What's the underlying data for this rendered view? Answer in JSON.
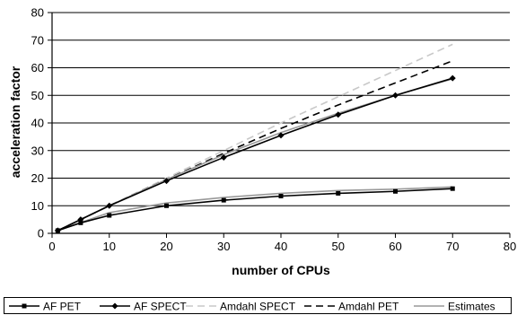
{
  "chart_data": {
    "type": "line",
    "title": "",
    "xlabel": "number of CPUs",
    "ylabel": "acceleration factor",
    "xlim": [
      0,
      80
    ],
    "ylim": [
      0,
      80
    ],
    "x_ticks": [
      0,
      10,
      20,
      30,
      40,
      50,
      60,
      70,
      80
    ],
    "y_ticks": [
      0,
      10,
      20,
      30,
      40,
      50,
      60,
      70,
      80
    ],
    "grid": "horizontal",
    "legend_position": "bottom",
    "series": [
      {
        "name": "AF PET",
        "color": "#000000",
        "style": "solid",
        "marker": "square",
        "x": [
          1,
          5,
          10,
          20,
          30,
          40,
          50,
          60,
          70
        ],
        "y": [
          1,
          3.8,
          6.5,
          10,
          12,
          13.5,
          14.5,
          15.2,
          16.2
        ]
      },
      {
        "name": "AF SPECT",
        "color": "#000000",
        "style": "solid",
        "marker": "diamond",
        "x": [
          1,
          5,
          10,
          20,
          30,
          40,
          50,
          60,
          70
        ],
        "y": [
          1,
          5,
          10,
          19,
          27.5,
          35.5,
          43,
          50,
          56.2
        ]
      },
      {
        "name": "Amdahl SPECT",
        "color": "#c8c8c8",
        "style": "dashed",
        "marker": "none",
        "x": [
          1,
          10,
          20,
          30,
          40,
          50,
          60,
          70
        ],
        "y": [
          1,
          10,
          20,
          30,
          40,
          49.5,
          59,
          68.5
        ]
      },
      {
        "name": "Amdahl PET",
        "color": "#000000",
        "style": "dashed",
        "marker": "none",
        "x": [
          1,
          10,
          20,
          30,
          40,
          50,
          60,
          70
        ],
        "y": [
          1,
          10,
          19.5,
          29,
          38,
          46.5,
          54.5,
          62.5
        ]
      },
      {
        "name": "Estimates",
        "color": "#999999",
        "style": "solid",
        "marker": "none",
        "x": [
          1,
          10,
          20,
          30,
          40,
          50,
          60,
          70
        ],
        "y": [
          1,
          10,
          19.5,
          28.5,
          36.5,
          43.5,
          50,
          56
        ]
      },
      {
        "name": "",
        "color": "#999999",
        "style": "solid",
        "marker": "none",
        "x": [
          1,
          10,
          20,
          30,
          40,
          50,
          60,
          70
        ],
        "y": [
          1,
          7.5,
          11,
          13,
          14.5,
          15.5,
          16,
          16.8
        ]
      }
    ]
  }
}
